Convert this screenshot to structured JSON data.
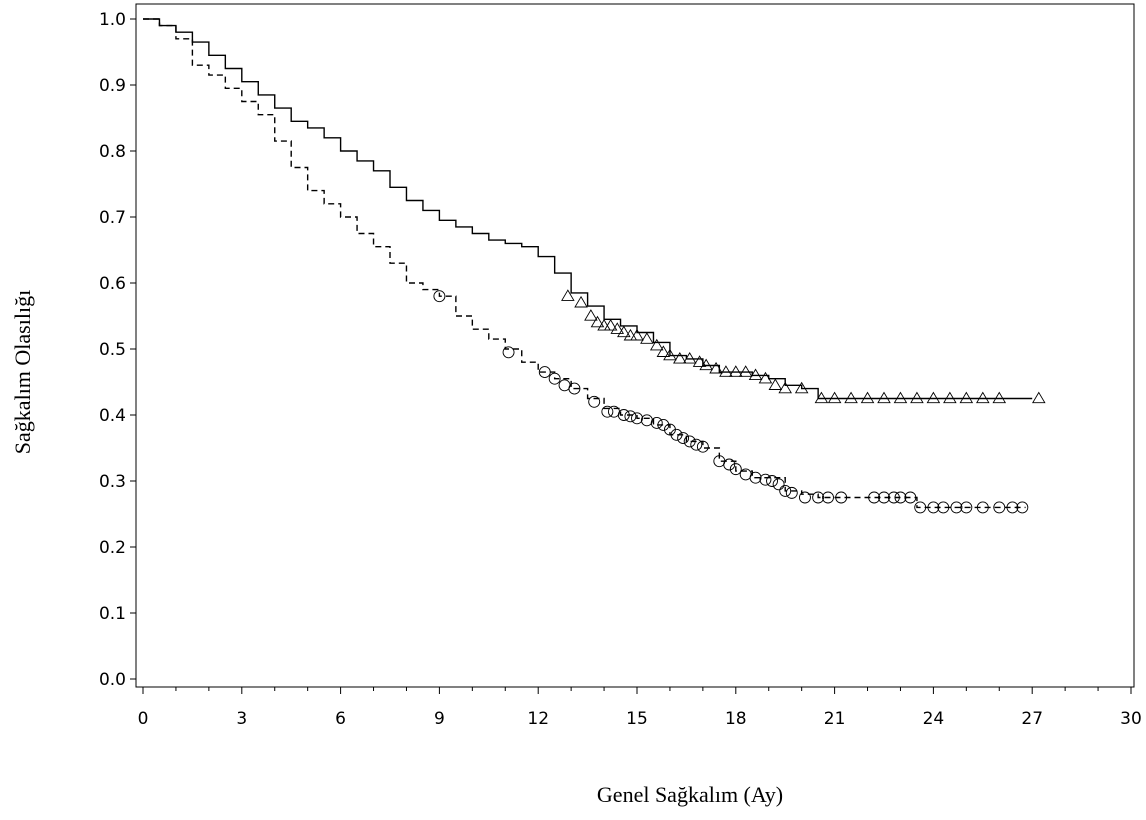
{
  "chart_data": {
    "type": "line",
    "subtype": "kaplan-meier",
    "title": "",
    "xlabel": "Genel Sağkalım (Ay)",
    "ylabel": "Sağkalım Olasılığı",
    "xlim": [
      0,
      30
    ],
    "ylim": [
      0,
      1
    ],
    "x_ticks": [
      "0",
      "3",
      "6",
      "9",
      "12",
      "15",
      "18",
      "21",
      "24",
      "27",
      "30"
    ],
    "y_ticks": [
      "0.0",
      "0.1",
      "0.2",
      "0.3",
      "0.4",
      "0.5",
      "0.6",
      "0.7",
      "0.8",
      "0.9",
      "1.0"
    ],
    "grid": false,
    "legend": "none",
    "series": [
      {
        "line_style": "solid",
        "censor_marker": "triangle",
        "x": [
          0,
          0.5,
          1.0,
          1.5,
          2.0,
          2.5,
          3.0,
          3.5,
          4.0,
          4.5,
          5.0,
          5.5,
          6.0,
          6.5,
          7.0,
          7.5,
          8.0,
          8.5,
          9.0,
          9.5,
          10.0,
          10.5,
          11.0,
          11.5,
          12.0,
          12.5,
          13.0,
          13.5,
          14.0,
          14.5,
          15.0,
          15.5,
          16.0,
          16.5,
          17.0,
          17.5,
          18.0,
          18.5,
          19.0,
          19.5,
          20.0,
          20.5,
          21.0,
          22.0,
          23.0,
          24.0,
          25.0,
          26.0,
          27.0
        ],
        "y": [
          1.0,
          0.99,
          0.98,
          0.965,
          0.945,
          0.925,
          0.905,
          0.885,
          0.865,
          0.845,
          0.835,
          0.82,
          0.8,
          0.785,
          0.77,
          0.745,
          0.725,
          0.71,
          0.695,
          0.685,
          0.675,
          0.665,
          0.66,
          0.655,
          0.64,
          0.615,
          0.585,
          0.565,
          0.545,
          0.535,
          0.525,
          0.51,
          0.49,
          0.485,
          0.475,
          0.465,
          0.465,
          0.46,
          0.455,
          0.445,
          0.44,
          0.425,
          0.425,
          0.425,
          0.425,
          0.425,
          0.425,
          0.425,
          0.425
        ],
        "censored": [
          [
            12.9,
            0.58
          ],
          [
            13.3,
            0.57
          ],
          [
            13.6,
            0.55
          ],
          [
            13.8,
            0.54
          ],
          [
            14.0,
            0.535
          ],
          [
            14.2,
            0.535
          ],
          [
            14.4,
            0.53
          ],
          [
            14.6,
            0.525
          ],
          [
            14.8,
            0.52
          ],
          [
            15.0,
            0.52
          ],
          [
            15.3,
            0.515
          ],
          [
            15.6,
            0.505
          ],
          [
            15.8,
            0.495
          ],
          [
            16.0,
            0.49
          ],
          [
            16.3,
            0.485
          ],
          [
            16.6,
            0.485
          ],
          [
            16.9,
            0.48
          ],
          [
            17.1,
            0.475
          ],
          [
            17.4,
            0.47
          ],
          [
            17.7,
            0.465
          ],
          [
            18.0,
            0.465
          ],
          [
            18.3,
            0.465
          ],
          [
            18.6,
            0.46
          ],
          [
            18.9,
            0.455
          ],
          [
            19.2,
            0.445
          ],
          [
            19.5,
            0.44
          ],
          [
            20.0,
            0.44
          ],
          [
            20.6,
            0.425
          ],
          [
            21.0,
            0.425
          ],
          [
            21.5,
            0.425
          ],
          [
            22.0,
            0.425
          ],
          [
            22.5,
            0.425
          ],
          [
            23.0,
            0.425
          ],
          [
            23.5,
            0.425
          ],
          [
            24.0,
            0.425
          ],
          [
            24.5,
            0.425
          ],
          [
            25.0,
            0.425
          ],
          [
            25.5,
            0.425
          ],
          [
            26.0,
            0.425
          ],
          [
            27.2,
            0.425
          ]
        ]
      },
      {
        "line_style": "dashed",
        "censor_marker": "circle",
        "x": [
          0,
          0.5,
          1.0,
          1.5,
          2.0,
          2.5,
          3.0,
          3.5,
          4.0,
          4.5,
          5.0,
          5.5,
          6.0,
          6.5,
          7.0,
          7.5,
          8.0,
          8.5,
          9.0,
          9.5,
          10.0,
          10.5,
          11.0,
          11.5,
          12.0,
          12.5,
          13.0,
          13.5,
          14.0,
          14.5,
          15.0,
          15.5,
          16.0,
          16.5,
          17.0,
          17.5,
          18.0,
          18.5,
          19.0,
          19.5,
          20.0,
          20.5,
          21.0,
          22.0,
          23.0,
          23.5,
          24.0,
          25.0,
          26.0,
          26.8
        ],
        "y": [
          1.0,
          0.99,
          0.97,
          0.93,
          0.915,
          0.895,
          0.875,
          0.855,
          0.815,
          0.775,
          0.74,
          0.72,
          0.7,
          0.675,
          0.655,
          0.63,
          0.6,
          0.59,
          0.58,
          0.55,
          0.53,
          0.515,
          0.5,
          0.48,
          0.465,
          0.455,
          0.44,
          0.425,
          0.41,
          0.4,
          0.395,
          0.385,
          0.37,
          0.36,
          0.35,
          0.33,
          0.315,
          0.305,
          0.305,
          0.285,
          0.28,
          0.275,
          0.275,
          0.275,
          0.275,
          0.26,
          0.26,
          0.26,
          0.26,
          0.26
        ],
        "censored": [
          [
            9.0,
            0.58
          ],
          [
            11.1,
            0.495
          ],
          [
            12.2,
            0.465
          ],
          [
            12.5,
            0.455
          ],
          [
            12.8,
            0.445
          ],
          [
            13.1,
            0.44
          ],
          [
            13.7,
            0.42
          ],
          [
            14.1,
            0.405
          ],
          [
            14.3,
            0.405
          ],
          [
            14.6,
            0.4
          ],
          [
            14.8,
            0.398
          ],
          [
            15.0,
            0.395
          ],
          [
            15.3,
            0.392
          ],
          [
            15.6,
            0.388
          ],
          [
            15.8,
            0.385
          ],
          [
            16.0,
            0.378
          ],
          [
            16.2,
            0.37
          ],
          [
            16.4,
            0.365
          ],
          [
            16.6,
            0.36
          ],
          [
            16.8,
            0.355
          ],
          [
            17.0,
            0.352
          ],
          [
            17.5,
            0.33
          ],
          [
            17.8,
            0.325
          ],
          [
            18.0,
            0.318
          ],
          [
            18.3,
            0.31
          ],
          [
            18.6,
            0.305
          ],
          [
            18.9,
            0.302
          ],
          [
            19.1,
            0.3
          ],
          [
            19.3,
            0.295
          ],
          [
            19.5,
            0.285
          ],
          [
            19.7,
            0.282
          ],
          [
            20.1,
            0.275
          ],
          [
            20.5,
            0.275
          ],
          [
            20.8,
            0.275
          ],
          [
            21.2,
            0.275
          ],
          [
            22.2,
            0.275
          ],
          [
            22.5,
            0.275
          ],
          [
            22.8,
            0.275
          ],
          [
            23.0,
            0.275
          ],
          [
            23.3,
            0.275
          ],
          [
            23.6,
            0.26
          ],
          [
            24.0,
            0.26
          ],
          [
            24.3,
            0.26
          ],
          [
            24.7,
            0.26
          ],
          [
            25.0,
            0.26
          ],
          [
            25.5,
            0.26
          ],
          [
            26.0,
            0.26
          ],
          [
            26.4,
            0.26
          ],
          [
            26.7,
            0.26
          ]
        ]
      }
    ]
  }
}
